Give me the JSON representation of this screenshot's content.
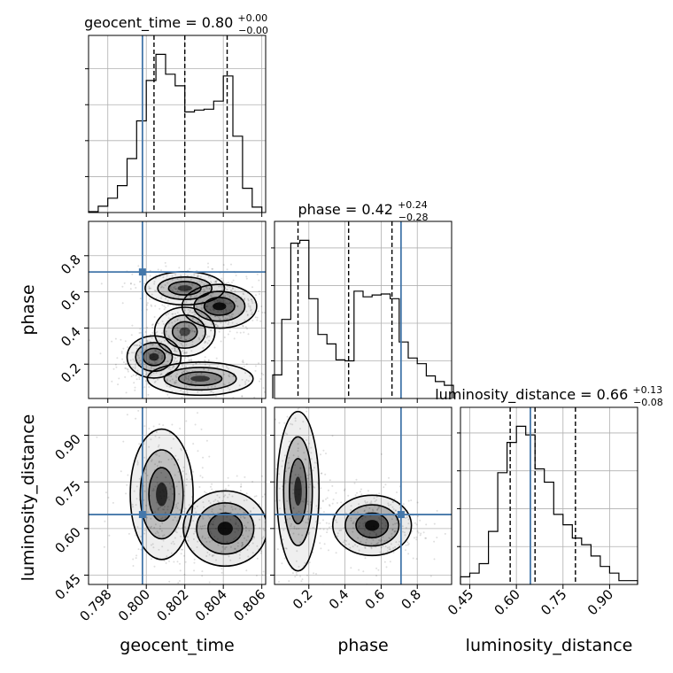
{
  "figure": {
    "colors": {
      "truth": "#4477aa",
      "hist": "#000000",
      "grid": "#b0b0b0",
      "density": "#000000"
    }
  },
  "chart_data": {
    "type": "corner",
    "grid": true,
    "parameters": [
      {
        "name": "geocent_time",
        "axis_label": "geocent_time",
        "title": "geocent_time = 0.80",
        "title_plus": "+0.00",
        "title_minus": "−0.00",
        "median": 0.802,
        "q16": 0.8004,
        "q84": 0.8042,
        "truth": 0.7998,
        "range": [
          0.797,
          0.8062
        ],
        "ticks": [
          0.798,
          0.8,
          0.802,
          0.804,
          0.806
        ],
        "tick_labels": [
          "0.798",
          "0.800",
          "0.802",
          "0.804",
          "0.806"
        ]
      },
      {
        "name": "phase",
        "axis_label": "phase",
        "title": "phase = 0.42",
        "title_plus": "+0.24",
        "title_minus": "−0.28",
        "median": 0.42,
        "q16": 0.14,
        "q84": 0.66,
        "truth": 0.71,
        "range": [
          0.01,
          0.99
        ],
        "ticks": [
          0.2,
          0.4,
          0.6,
          0.8
        ],
        "tick_labels": [
          "0.2",
          "0.4",
          "0.6",
          "0.8"
        ]
      },
      {
        "name": "luminosity_distance",
        "axis_label": "luminosity_distance",
        "title": "luminosity_distance = 0.66",
        "title_plus": "+0.13",
        "title_minus": "−0.08",
        "median": 0.66,
        "q16": 0.58,
        "q84": 0.79,
        "truth": 0.645,
        "range": [
          0.42,
          0.99
        ],
        "ticks": [
          0.45,
          0.6,
          0.75,
          0.9
        ],
        "tick_labels": [
          "0.45",
          "0.60",
          "0.75",
          "0.90"
        ]
      }
    ],
    "histograms": [
      {
        "param": "geocent_time",
        "edges": [
          0.797,
          0.7975,
          0.798,
          0.7985,
          0.799,
          0.7995,
          0.8,
          0.8005,
          0.801,
          0.8015,
          0.802,
          0.8025,
          0.803,
          0.8035,
          0.804,
          0.8045,
          0.805,
          0.8055,
          0.806
        ],
        "counts": [
          1,
          7,
          16,
          30,
          60,
          102,
          147,
          176,
          154,
          141,
          112,
          114,
          115,
          124,
          152,
          85,
          27,
          6
        ]
      },
      {
        "param": "phase",
        "edges": [
          0.0,
          0.05,
          0.1,
          0.15,
          0.2,
          0.25,
          0.3,
          0.35,
          0.4,
          0.45,
          0.5,
          0.55,
          0.6,
          0.65,
          0.7,
          0.75,
          0.8,
          0.85,
          0.9,
          0.95,
          1.0
        ],
        "counts": [
          25,
          84,
          165,
          168,
          106,
          68,
          58,
          41,
          40,
          114,
          108,
          110,
          111,
          106,
          60,
          43,
          37,
          24,
          18,
          14
        ]
      },
      {
        "param": "luminosity_distance",
        "edges": [
          0.42,
          0.45,
          0.48,
          0.51,
          0.54,
          0.57,
          0.6,
          0.63,
          0.66,
          0.69,
          0.72,
          0.75,
          0.78,
          0.81,
          0.84,
          0.87,
          0.9,
          0.93,
          0.96,
          0.99
        ],
        "counts": [
          8,
          12,
          22,
          56,
          118,
          150,
          167,
          158,
          122,
          108,
          74,
          63,
          49,
          42,
          30,
          19,
          12,
          4,
          4
        ]
      }
    ],
    "joint": [
      {
        "x": "geocent_time",
        "y": "phase",
        "modes": [
          {
            "x": 0.8004,
            "y": 0.24,
            "sx": 0.0006,
            "sy": 0.05,
            "w": 0.8
          },
          {
            "x": 0.802,
            "y": 0.38,
            "sx": 0.0007,
            "sy": 0.06,
            "w": 0.6
          },
          {
            "x": 0.8038,
            "y": 0.52,
            "sx": 0.0008,
            "sy": 0.05,
            "w": 1.0
          },
          {
            "x": 0.802,
            "y": 0.62,
            "sx": 0.0009,
            "sy": 0.04,
            "w": 0.7
          },
          {
            "x": 0.8028,
            "y": 0.12,
            "sx": 0.0012,
            "sy": 0.04,
            "w": 0.7
          }
        ]
      },
      {
        "x": "geocent_time",
        "y": "luminosity_distance",
        "modes": [
          {
            "x": 0.8008,
            "y": 0.71,
            "sx": 0.0007,
            "sy": 0.09,
            "w": 0.8
          },
          {
            "x": 0.8041,
            "y": 0.6,
            "sx": 0.0009,
            "sy": 0.05,
            "w": 1.0
          }
        ]
      },
      {
        "x": "phase",
        "y": "luminosity_distance",
        "modes": [
          {
            "x": 0.14,
            "y": 0.72,
            "sx": 0.05,
            "sy": 0.11,
            "w": 0.8
          },
          {
            "x": 0.55,
            "y": 0.61,
            "sx": 0.09,
            "sy": 0.04,
            "w": 1.0
          }
        ]
      }
    ]
  }
}
